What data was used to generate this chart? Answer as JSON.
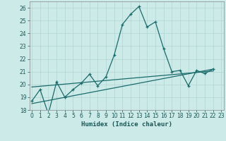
{
  "xlabel": "Humidex (Indice chaleur)",
  "x_values": [
    0,
    1,
    2,
    3,
    4,
    5,
    6,
    7,
    8,
    9,
    10,
    11,
    12,
    13,
    14,
    15,
    16,
    17,
    18,
    19,
    20,
    21,
    22,
    23
  ],
  "line1_y": [
    18.7,
    19.6,
    17.7,
    20.2,
    19.0,
    19.6,
    20.1,
    20.8,
    19.9,
    20.6,
    22.3,
    24.7,
    25.5,
    26.1,
    24.5,
    24.9,
    22.8,
    21.0,
    21.1,
    19.9,
    21.1,
    20.85,
    21.2,
    null
  ],
  "trend1_x": [
    0,
    22
  ],
  "trend1_y": [
    18.5,
    21.2
  ],
  "trend2_x": [
    0,
    22
  ],
  "trend2_y": [
    19.8,
    21.05
  ],
  "line_color": "#1a6b6b",
  "bg_color": "#cceae8",
  "grid_color": "#b0d5d3",
  "ylim": [
    18,
    26.5
  ],
  "xlim": [
    -0.3,
    23.3
  ],
  "yticks": [
    18,
    19,
    20,
    21,
    22,
    23,
    24,
    25,
    26
  ],
  "xtick_labels": [
    "0",
    "1",
    "2",
    "3",
    "4",
    "5",
    "6",
    "7",
    "8",
    "9",
    "10",
    "11",
    "12",
    "13",
    "14",
    "15",
    "16",
    "17",
    "18",
    "19",
    "20",
    "21",
    "22",
    "23"
  ]
}
